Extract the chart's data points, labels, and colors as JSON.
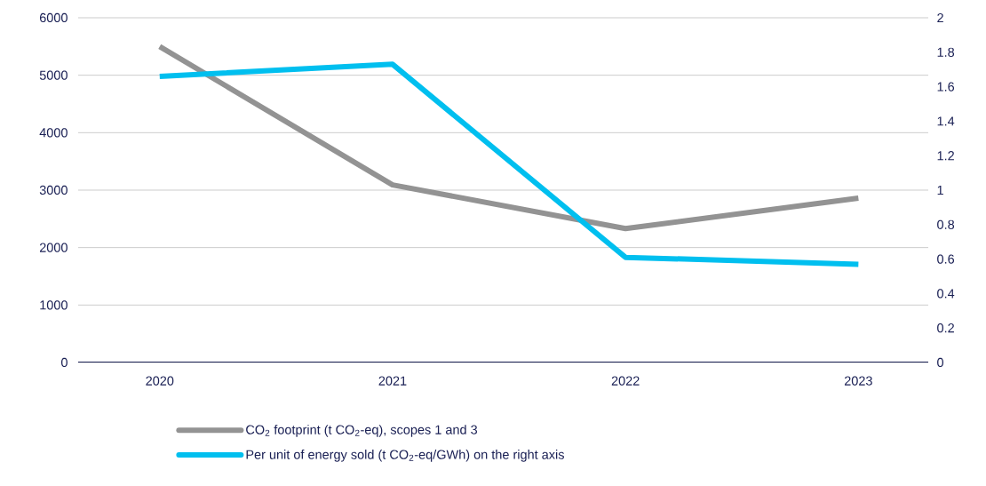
{
  "chart_data": {
    "type": "line",
    "categories": [
      "2020",
      "2021",
      "2022",
      "2023"
    ],
    "series": [
      {
        "name": "CO$_{2}$ footprint (t CO$_{2}$-eq), scopes 1 and 3",
        "color": "#939393",
        "values": [
          5500,
          3090,
          2330,
          2860
        ]
      },
      {
        "name": "Per unit of energy sold (t CO$_{2}$-eq/GWh) on the right axis",
        "color": "#00bfef",
        "values": [
          1.66,
          1.73,
          0.61,
          0.57
        ],
        "axis": "y2"
      }
    ],
    "ylim": [
      0,
      6000
    ],
    "yticks": [
      0,
      1000,
      2000,
      3000,
      4000,
      5000,
      6000
    ],
    "y2lim": [
      0,
      2
    ],
    "y2ticks": [
      0,
      0.2,
      0.4,
      0.6,
      0.8,
      1,
      1.2,
      1.4,
      1.6,
      1.8,
      2
    ],
    "grid": "y",
    "legend": "bottom",
    "marker": "none",
    "line_style": "solid"
  }
}
